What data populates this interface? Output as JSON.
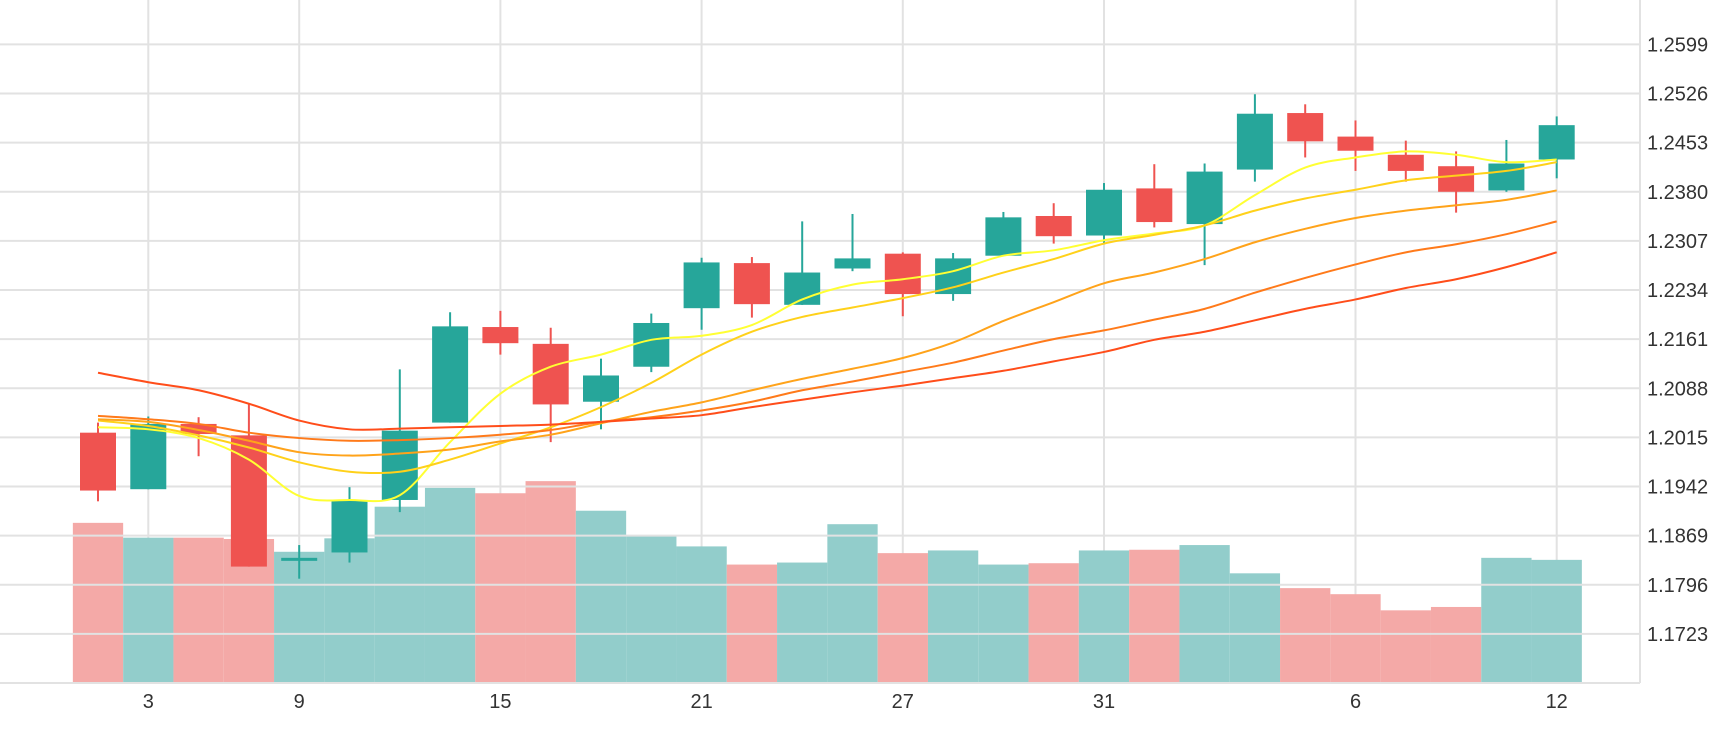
{
  "colors": {
    "up": "#26a69a",
    "down": "#ef5350",
    "volume_up": "#92cdcb",
    "volume_down": "#f4a9a7",
    "grid": "#e2e2e2",
    "axis_text": "#333333",
    "ma_lines": [
      "#ffff33",
      "#ffd11a",
      "#ffa31a",
      "#ff7a1a",
      "#ff4d1a"
    ]
  },
  "chart_data": {
    "type": "candlestick",
    "title": "",
    "xlabel": "",
    "ylabel": "",
    "ylim": [
      1.165,
      1.2665
    ],
    "grid": true,
    "y_ticks": [
      "1.2599",
      "1.2526",
      "1.2453",
      "1.2380",
      "1.2307",
      "1.2234",
      "1.2161",
      "1.2088",
      "1.2015",
      "1.1942",
      "1.1869",
      "1.1796",
      "1.1723"
    ],
    "x_ticks": [
      "3",
      "9",
      "15",
      "21",
      "27",
      "31",
      "6",
      "12"
    ],
    "x_tick_index": [
      1,
      4,
      8,
      12,
      16,
      20,
      25,
      29
    ],
    "candles": [
      {
        "open": 1.2022,
        "high": 1.2037,
        "low": 1.192,
        "close": 1.1936
      },
      {
        "open": 1.1938,
        "high": 1.2046,
        "low": 1.1938,
        "close": 1.2035
      },
      {
        "open": 1.2035,
        "high": 1.2045,
        "low": 1.1987,
        "close": 1.202
      },
      {
        "open": 1.2018,
        "high": 1.2066,
        "low": 1.1823,
        "close": 1.1823
      },
      {
        "open": 1.1836,
        "high": 1.1855,
        "low": 1.1805,
        "close": 1.1836
      },
      {
        "open": 1.1844,
        "high": 1.1941,
        "low": 1.1829,
        "close": 1.1922
      },
      {
        "open": 1.1922,
        "high": 1.2116,
        "low": 1.1904,
        "close": 1.2025
      },
      {
        "open": 1.2037,
        "high": 1.2201,
        "low": 1.2037,
        "close": 1.218
      },
      {
        "open": 1.2179,
        "high": 1.2203,
        "low": 1.2138,
        "close": 1.2155
      },
      {
        "open": 1.2154,
        "high": 1.2178,
        "low": 1.2008,
        "close": 1.2064
      },
      {
        "open": 1.2068,
        "high": 1.2132,
        "low": 1.2027,
        "close": 1.2107
      },
      {
        "open": 1.212,
        "high": 1.2199,
        "low": 1.2112,
        "close": 1.2185
      },
      {
        "open": 1.2207,
        "high": 1.2282,
        "low": 1.2175,
        "close": 1.2275
      },
      {
        "open": 1.2274,
        "high": 1.2283,
        "low": 1.2193,
        "close": 1.2213
      },
      {
        "open": 1.2212,
        "high": 1.2336,
        "low": 1.2212,
        "close": 1.226
      },
      {
        "open": 1.2266,
        "high": 1.2347,
        "low": 1.2262,
        "close": 1.2281
      },
      {
        "open": 1.2288,
        "high": 1.229,
        "low": 1.2195,
        "close": 1.2228
      },
      {
        "open": 1.2228,
        "high": 1.2289,
        "low": 1.2218,
        "close": 1.2281
      },
      {
        "open": 1.2285,
        "high": 1.235,
        "low": 1.2285,
        "close": 1.2342
      },
      {
        "open": 1.2344,
        "high": 1.2363,
        "low": 1.2303,
        "close": 1.2314
      },
      {
        "open": 1.2315,
        "high": 1.2393,
        "low": 1.2302,
        "close": 1.2383
      },
      {
        "open": 1.2385,
        "high": 1.2421,
        "low": 1.2327,
        "close": 1.2335
      },
      {
        "open": 1.2332,
        "high": 1.2422,
        "low": 1.2271,
        "close": 1.241
      },
      {
        "open": 1.2413,
        "high": 1.2525,
        "low": 1.2395,
        "close": 1.2496
      },
      {
        "open": 1.2497,
        "high": 1.251,
        "low": 1.2431,
        "close": 1.2455
      },
      {
        "open": 1.2462,
        "high": 1.2486,
        "low": 1.2411,
        "close": 1.2441
      },
      {
        "open": 1.2435,
        "high": 1.2456,
        "low": 1.2395,
        "close": 1.2411
      },
      {
        "open": 1.2418,
        "high": 1.244,
        "low": 1.2349,
        "close": 1.238
      },
      {
        "open": 1.2382,
        "high": 1.2457,
        "low": 1.238,
        "close": 1.2422
      },
      {
        "open": 1.2428,
        "high": 1.2492,
        "low": 1.24,
        "close": 1.2479
      }
    ],
    "volume": [
      1.1888,
      1.1866,
      1.1866,
      1.1864,
      1.1845,
      1.1865,
      1.1912,
      1.194,
      1.1932,
      1.195,
      1.1906,
      1.187,
      1.1853,
      1.1826,
      1.1829,
      1.1886,
      1.1843,
      1.1847,
      1.1826,
      1.1828,
      1.1847,
      1.1848,
      1.1855,
      1.1813,
      1.1791,
      1.1782,
      1.1758,
      1.1763,
      1.1836,
      1.1833
    ],
    "moving_averages": [
      {
        "values": [
          1.203,
          1.2027,
          1.2014,
          1.1982,
          1.1928,
          1.1922,
          1.1929,
          1.2008,
          1.208,
          1.212,
          1.2138,
          1.216,
          1.2166,
          1.2182,
          1.222,
          1.2242,
          1.225,
          1.2262,
          1.2285,
          1.2293,
          1.2308,
          1.2318,
          1.233,
          1.2375,
          1.2416,
          1.2431,
          1.244,
          1.2435,
          1.2424,
          1.2428
        ]
      },
      {
        "values": [
          1.204,
          1.2032,
          1.2018,
          1.2,
          1.1978,
          1.1964,
          1.1964,
          1.1982,
          1.2006,
          1.203,
          1.206,
          1.2096,
          1.2138,
          1.2172,
          1.2194,
          1.2208,
          1.2222,
          1.2238,
          1.226,
          1.228,
          1.2303,
          1.2316,
          1.233,
          1.2352,
          1.237,
          1.2383,
          1.2397,
          1.2404,
          1.2411,
          1.2424
        ]
      },
      {
        "values": [
          1.2042,
          1.2038,
          1.2026,
          1.201,
          1.1993,
          1.1988,
          1.1991,
          1.1997,
          1.2009,
          1.2019,
          1.2036,
          1.2053,
          1.2067,
          1.2085,
          1.2102,
          1.2117,
          1.2133,
          1.2156,
          1.2188,
          1.2216,
          1.2244,
          1.226,
          1.228,
          1.2305,
          1.2325,
          1.2341,
          1.2352,
          1.236,
          1.2368,
          1.2382
        ]
      },
      {
        "values": [
          1.2047,
          1.2042,
          1.2035,
          1.2022,
          1.2014,
          1.201,
          1.2011,
          1.2014,
          1.2019,
          1.2026,
          1.2038,
          1.2045,
          1.2055,
          1.2068,
          1.2085,
          1.2098,
          1.2112,
          1.2126,
          1.2144,
          1.2161,
          1.2174,
          1.219,
          1.2206,
          1.223,
          1.2252,
          1.2272,
          1.229,
          1.2302,
          1.2317,
          1.2336
        ]
      },
      {
        "values": [
          1.2111,
          1.2097,
          1.2085,
          1.2065,
          1.204,
          1.2027,
          1.2028,
          1.203,
          1.2032,
          1.2034,
          1.2038,
          1.2043,
          1.2048,
          1.206,
          1.2071,
          1.2082,
          1.2092,
          1.2103,
          1.2114,
          1.2128,
          1.2142,
          1.216,
          1.2172,
          1.2189,
          1.2206,
          1.222,
          1.2237,
          1.225,
          1.2268,
          1.229
        ]
      }
    ]
  }
}
